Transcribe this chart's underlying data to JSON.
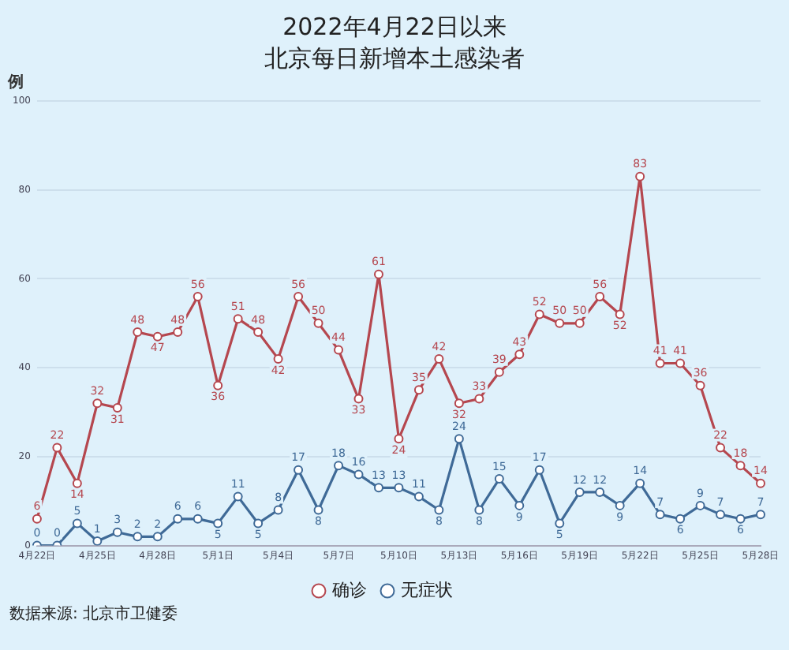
{
  "chart_data": {
    "type": "line",
    "title": "2022年4月22日以来",
    "subtitle": "北京每日新增本土感染者",
    "ylabel": "例",
    "categories": [
      "4月22日",
      null,
      null,
      "4月25日",
      null,
      null,
      "4月28日",
      null,
      null,
      "5月1日",
      null,
      null,
      "5月4日",
      null,
      null,
      "5月7日",
      null,
      null,
      "5月10日",
      null,
      null,
      "5月13日",
      null,
      null,
      "5月16日",
      null,
      null,
      "5月19日",
      null,
      null,
      "5月22日",
      null,
      null,
      "5月25日",
      null,
      null,
      "5月28日"
    ],
    "series": [
      {
        "name": "确诊",
        "color": "#b5474f",
        "values": [
          6,
          22,
          14,
          32,
          31,
          48,
          47,
          48,
          56,
          36,
          51,
          48,
          42,
          56,
          50,
          44,
          33,
          61,
          24,
          35,
          42,
          32,
          33,
          39,
          43,
          52,
          50,
          50,
          56,
          52,
          83,
          41,
          41,
          36,
          22,
          18,
          14
        ]
      },
      {
        "name": "无症状",
        "color": "#3f6a97",
        "values": [
          0,
          0,
          5,
          1,
          3,
          2,
          2,
          6,
          6,
          5,
          11,
          5,
          8,
          17,
          8,
          18,
          16,
          13,
          13,
          11,
          8,
          24,
          8,
          15,
          9,
          17,
          5,
          12,
          12,
          9,
          14,
          7,
          6,
          9,
          7,
          6,
          7
        ]
      }
    ],
    "ylim": [
      0,
      100
    ],
    "yticks": [
      0,
      20,
      40,
      60,
      80,
      100
    ],
    "grid": "y",
    "legend": "bottom",
    "marker": "circle",
    "data_labels": true,
    "annotations": [
      "数据来源: 北京市卫健委"
    ]
  }
}
